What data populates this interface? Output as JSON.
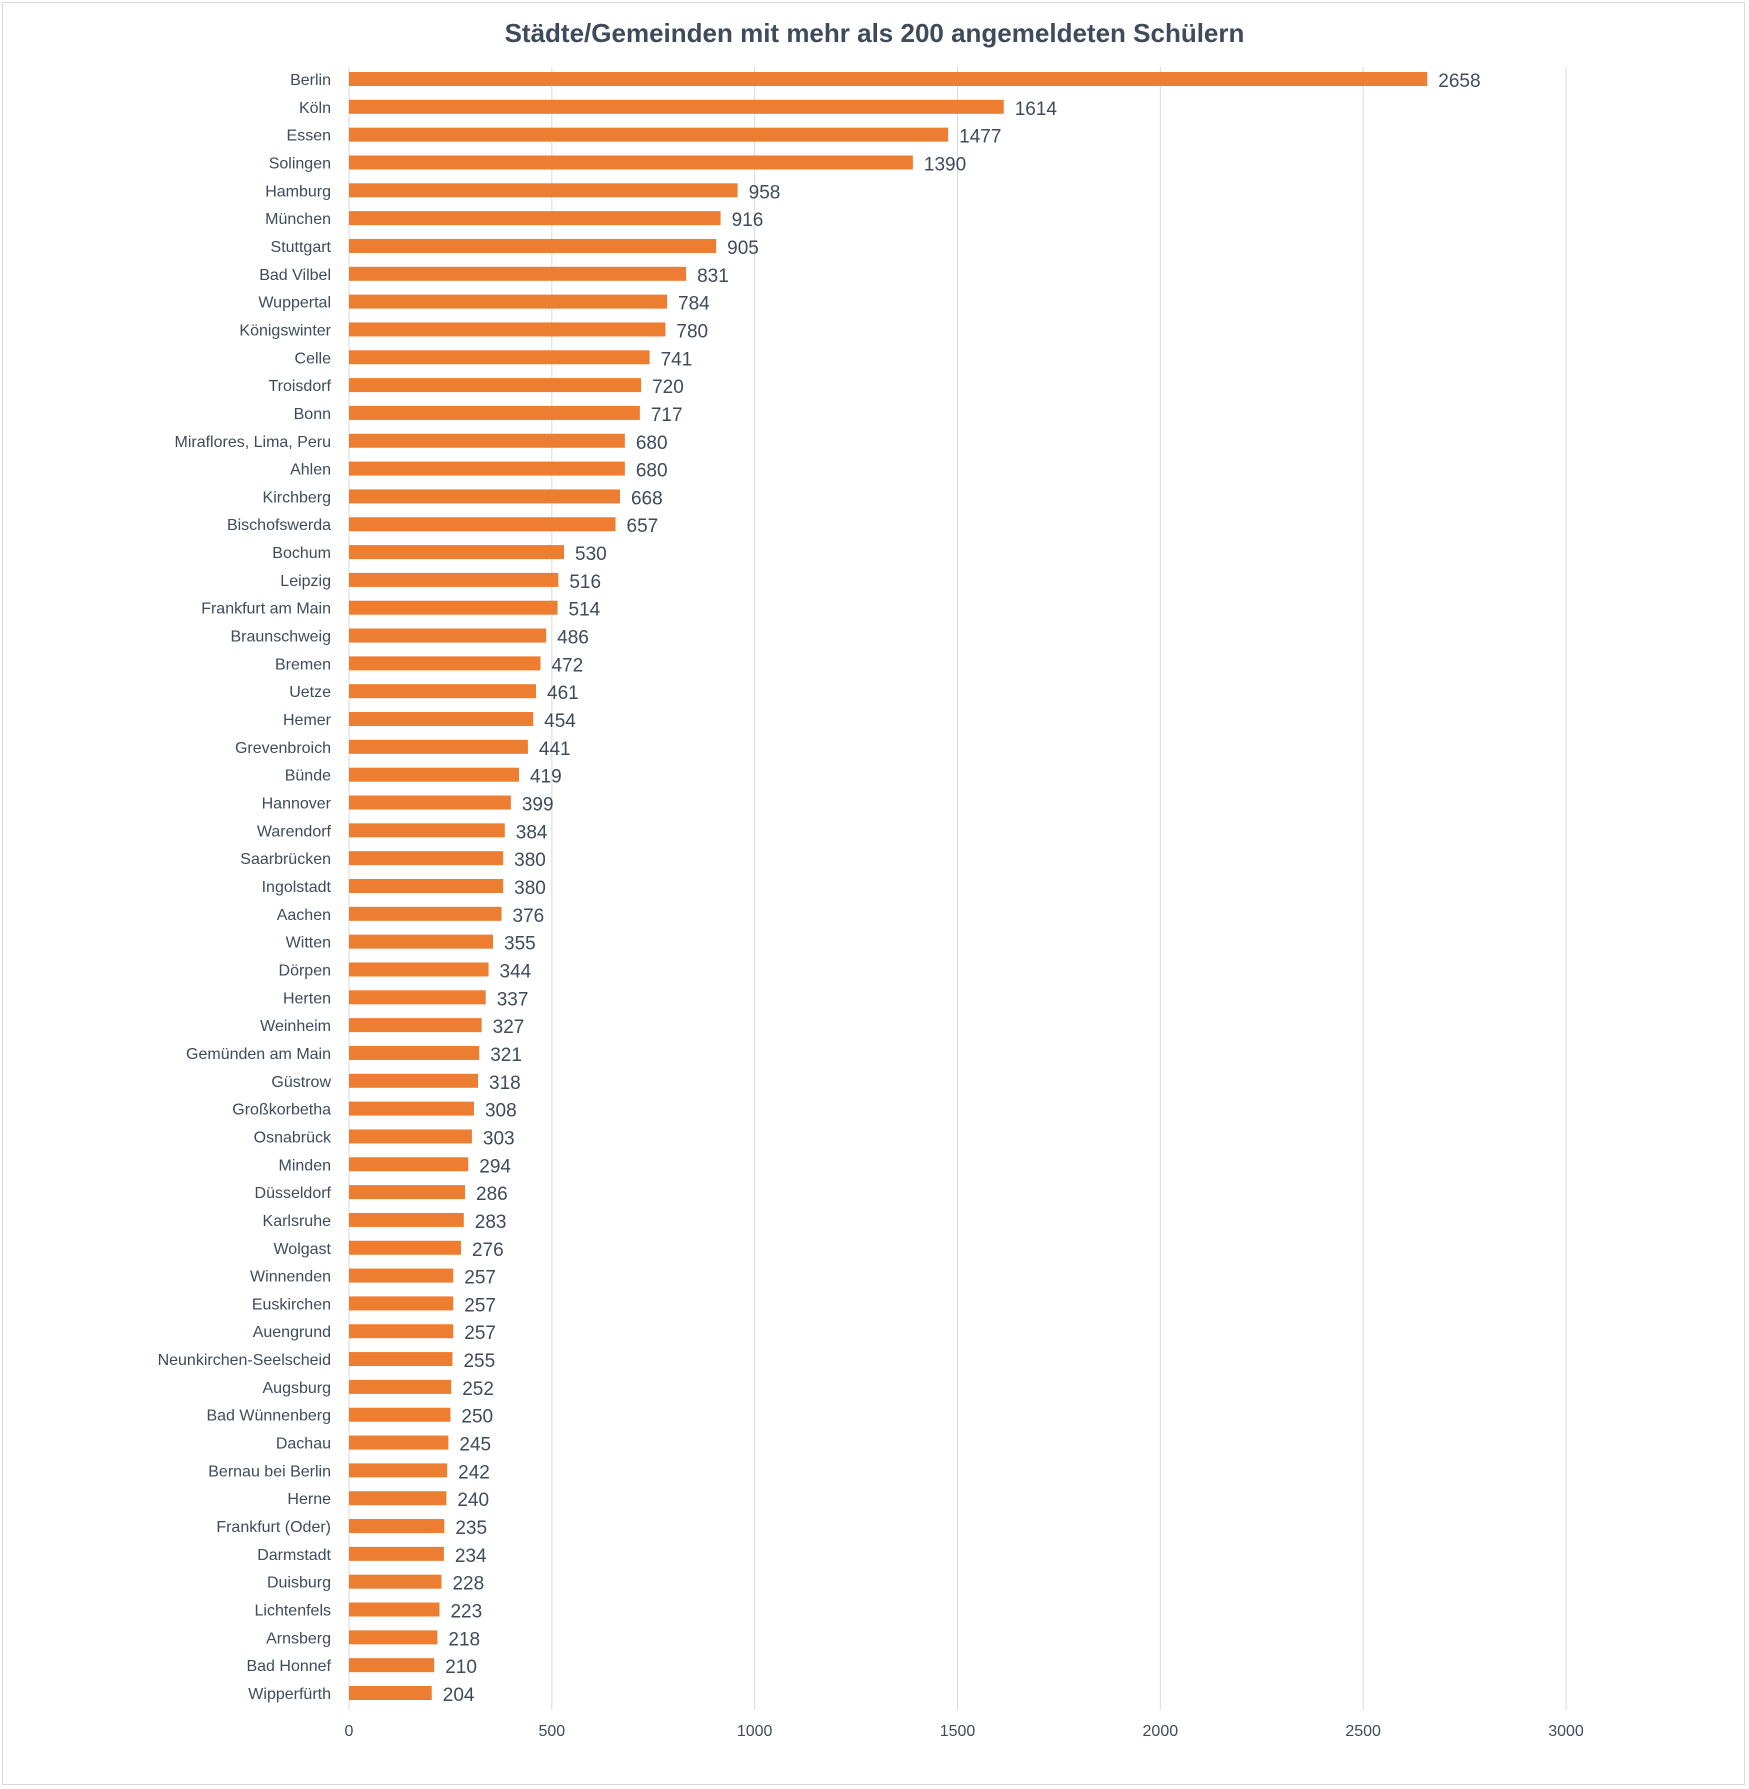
{
  "chart_data": {
    "type": "bar",
    "orientation": "horizontal",
    "title": "Städte/Gemeinden mit mehr als 200 angemeldeten Schülern",
    "xlim": [
      0,
      3000
    ],
    "x_ticks": [
      0,
      500,
      1000,
      1500,
      2000,
      2500,
      3000
    ],
    "grid": "vertical",
    "bar_color": "#ed7d31",
    "text_color": "#3f4a5a",
    "categories": [
      "Berlin",
      "Köln",
      "Essen",
      "Solingen",
      "Hamburg",
      "München",
      "Stuttgart",
      "Bad Vilbel",
      "Wuppertal",
      "Königswinter",
      "Celle",
      "Troisdorf",
      "Bonn",
      "Miraflores, Lima, Peru",
      "Ahlen",
      "Kirchberg",
      "Bischofswerda",
      "Bochum",
      "Leipzig",
      "Frankfurt am Main",
      "Braunschweig",
      "Bremen",
      "Uetze",
      "Hemer",
      "Grevenbroich",
      "Bünde",
      "Hannover",
      "Warendorf",
      "Saarbrücken",
      "Ingolstadt",
      "Aachen",
      "Witten",
      "Dörpen",
      "Herten",
      "Weinheim",
      "Gemünden am Main",
      "Güstrow",
      "Großkorbetha",
      "Osnabrück",
      "Minden",
      "Düsseldorf",
      "Karlsruhe",
      "Wolgast",
      "Winnenden",
      "Euskirchen",
      "Auengrund",
      "Neunkirchen-Seelscheid",
      "Augsburg",
      "Bad Wünnenberg",
      "Dachau",
      "Bernau bei Berlin",
      "Herne",
      "Frankfurt (Oder)",
      "Darmstadt",
      "Duisburg",
      "Lichtenfels",
      "Arnsberg",
      "Bad Honnef",
      "Wipperfürth"
    ],
    "values": [
      2658,
      1614,
      1477,
      1390,
      958,
      916,
      905,
      831,
      784,
      780,
      741,
      720,
      717,
      680,
      680,
      668,
      657,
      530,
      516,
      514,
      486,
      472,
      461,
      454,
      441,
      419,
      399,
      384,
      380,
      380,
      376,
      355,
      344,
      337,
      327,
      321,
      318,
      308,
      303,
      294,
      286,
      283,
      276,
      257,
      257,
      257,
      255,
      252,
      250,
      245,
      242,
      240,
      235,
      234,
      228,
      223,
      218,
      210,
      204
    ]
  }
}
